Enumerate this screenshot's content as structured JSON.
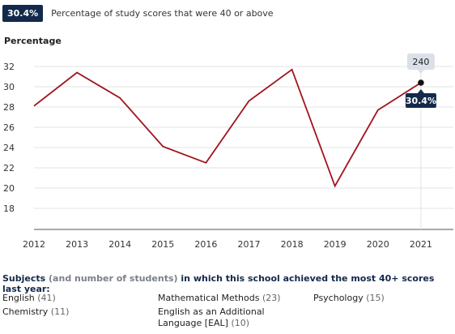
{
  "stat": {
    "badge": "30.4%",
    "caption": "Percentage of study scores that were 40 or above"
  },
  "chart_data": {
    "type": "line",
    "ylabel": "Percentage",
    "x": [
      "2012",
      "2013",
      "2014",
      "2015",
      "2016",
      "2017",
      "2018",
      "2019",
      "2020",
      "2021"
    ],
    "series": [
      {
        "values": [
          28.1,
          31.4,
          28.9,
          24.1,
          22.5,
          28.6,
          31.7,
          20.2,
          27.7,
          30.4
        ]
      }
    ],
    "y_ticks": [
      "18",
      "20",
      "22",
      "24",
      "26",
      "28",
      "30",
      "32"
    ],
    "ylim": [
      16,
      33.3
    ],
    "grid": true,
    "colors": {
      "line": "#a0141e",
      "badge": "#13294b",
      "tooltip": "#dbe0e8"
    },
    "annotation": {
      "x": "2021",
      "top_label": "240",
      "bottom_label": "30.4%"
    }
  },
  "subjects": {
    "title_start": "Subjects",
    "title_muted": "(and number of students)",
    "title_end": "in which this school achieved the most 40+ scores last year:",
    "items": [
      {
        "name": "English",
        "count": "(41)"
      },
      {
        "name": "Mathematical Methods",
        "count": "(23)"
      },
      {
        "name": "Psychology",
        "count": "(15)"
      },
      {
        "name": "Chemistry",
        "count": "(11)"
      },
      {
        "name": "English as an Additional Language [EAL]",
        "count": "(10)"
      }
    ]
  }
}
